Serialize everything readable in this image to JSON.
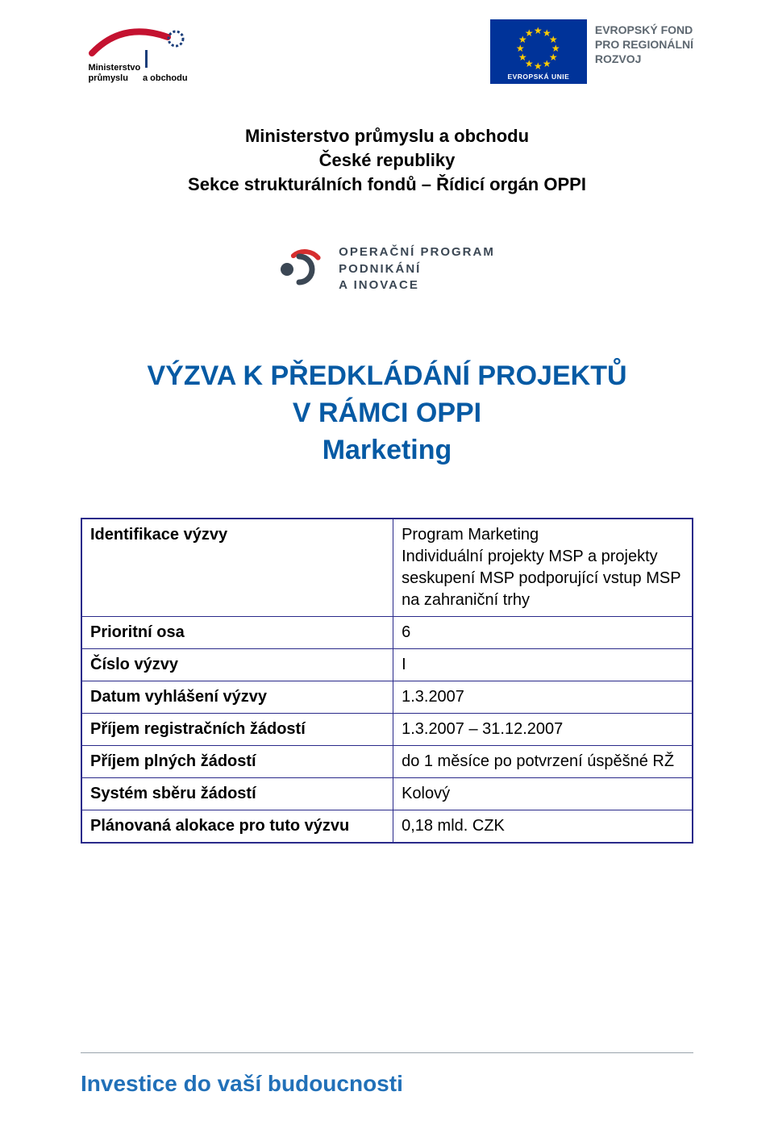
{
  "colors": {
    "brand_blue": "#065aa4",
    "table_border": "#2a2a8a",
    "eu_flag_bg": "#003399",
    "eu_star": "#ffcc00",
    "ef_gray": "#5d6770",
    "footer_blue": "#2170b8",
    "mpo_red": "#c41230",
    "mpo_blue_dark": "#1b3e7a",
    "oppi_red": "#d62e2e",
    "oppi_dark": "#3b4754"
  },
  "logos": {
    "mpo": {
      "line1": "Ministerstvo",
      "line2": "průmyslu",
      "line3": "a obchodu"
    },
    "eu_flag_label": "EVROPSKÁ UNIE",
    "ef": {
      "line1": "EVROPSKÝ FOND",
      "line2": "PRO REGIONÁLNÍ",
      "line3": "ROZVOJ"
    },
    "oppi": {
      "line1": "OPERAČNÍ PROGRAM",
      "line2": "PODNIKÁNÍ",
      "line3": "A INOVACE"
    }
  },
  "ministry": {
    "line1": "Ministerstvo průmyslu a obchodu",
    "line2": "České republiky",
    "line3": "Sekce strukturálních fondů – Řídicí orgán OPPI"
  },
  "title": {
    "line1": "VÝZVA K PŘEDKLÁDÁNÍ PROJEKTŮ",
    "line2": "V RÁMCI OPPI",
    "line3": "Marketing"
  },
  "table": {
    "rows": [
      {
        "label": "Identifikace výzvy",
        "value": "Program Marketing\nIndividuální projekty MSP a projekty seskupení MSP podporující vstup MSP na zahraniční trhy"
      },
      {
        "label": "Prioritní osa",
        "value": "6"
      },
      {
        "label": "Číslo výzvy",
        "value": "I"
      },
      {
        "label": "Datum vyhlášení výzvy",
        "value": "1.3.2007"
      },
      {
        "label": "Příjem registračních žádostí",
        "value": "1.3.2007 – 31.12.2007"
      },
      {
        "label": "Příjem plných žádostí",
        "value": "do 1 měsíce po potvrzení úspěšné RŽ"
      },
      {
        "label": "Systém sběru žádostí",
        "value": "Kolový"
      },
      {
        "label": "Plánovaná alokace pro tuto výzvu",
        "value": "0,18 mld. CZK"
      }
    ]
  },
  "footer": "Investice do vaší budoucnosti"
}
